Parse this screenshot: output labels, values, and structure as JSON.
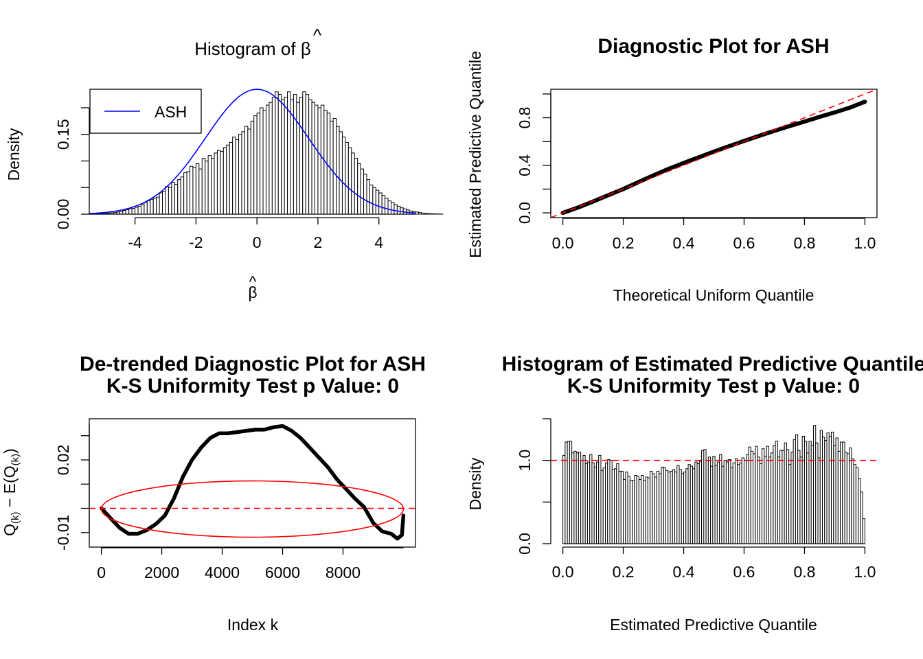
{
  "chart_data": [
    {
      "type": "bar",
      "title": "Histogram of β̂",
      "title_text": "Histogram of ",
      "title_symbol": "β",
      "xlabel_symbol": "β",
      "ylabel": "Density",
      "xlim": [
        -5.5,
        5.2
      ],
      "ylim": [
        0,
        0.24
      ],
      "x_ticks": [
        "-4",
        "-2",
        "0",
        "2",
        "4"
      ],
      "y_ticks": [
        "0.00",
        "0.15"
      ],
      "bins_from": -5.4,
      "bin_width": 0.1,
      "values": [
        0.0003,
        0.0004,
        0.0008,
        0.001,
        0.0012,
        0.002,
        0.0025,
        0.003,
        0.004,
        0.005,
        0.007,
        0.0085,
        0.01,
        0.011,
        0.013,
        0.015,
        0.018,
        0.022,
        0.025,
        0.028,
        0.03,
        0.032,
        0.04,
        0.043,
        0.052,
        0.05,
        0.06,
        0.056,
        0.065,
        0.07,
        0.078,
        0.08,
        0.09,
        0.088,
        0.095,
        0.085,
        0.105,
        0.1,
        0.11,
        0.105,
        0.115,
        0.12,
        0.118,
        0.125,
        0.13,
        0.135,
        0.145,
        0.14,
        0.15,
        0.155,
        0.165,
        0.16,
        0.175,
        0.185,
        0.19,
        0.2,
        0.195,
        0.205,
        0.21,
        0.22,
        0.23,
        0.225,
        0.215,
        0.22,
        0.23,
        0.215,
        0.225,
        0.21,
        0.22,
        0.23,
        0.225,
        0.215,
        0.21,
        0.205,
        0.2,
        0.205,
        0.195,
        0.19,
        0.175,
        0.18,
        0.165,
        0.155,
        0.145,
        0.135,
        0.125,
        0.115,
        0.105,
        0.095,
        0.085,
        0.075,
        0.065,
        0.055,
        0.05,
        0.045,
        0.04,
        0.035,
        0.03,
        0.025,
        0.022,
        0.018,
        0.015,
        0.012,
        0.01,
        0.008,
        0.006,
        0.005,
        0.004,
        0.003,
        0.002,
        0.0015,
        0.001,
        0.0008,
        0.0005,
        0.0004,
        0.0003
      ],
      "series": [
        {
          "name": "ASH",
          "curve": "normal",
          "mean": 0.0,
          "sd": 1.7,
          "color": "#0000ff"
        }
      ],
      "legend": "top-left"
    },
    {
      "type": "line",
      "title": "Diagnostic Plot for ASH",
      "xlabel": "Theoretical Uniform Quantile",
      "ylabel": "Estimated Predictive Quantile",
      "xlim": [
        -0.04,
        1.04
      ],
      "ylim": [
        -0.04,
        1.04
      ],
      "x_ticks": [
        "0.0",
        "0.2",
        "0.4",
        "0.6",
        "0.8",
        "1.0"
      ],
      "y_ticks": [
        "0.0",
        "0.4",
        "0.8"
      ],
      "x": [
        0.0,
        0.05,
        0.1,
        0.15,
        0.2,
        0.25,
        0.3,
        0.35,
        0.4,
        0.45,
        0.5,
        0.55,
        0.6,
        0.65,
        0.7,
        0.75,
        0.8,
        0.85,
        0.9,
        0.95,
        1.0
      ],
      "y": [
        0.0,
        0.045,
        0.095,
        0.148,
        0.2,
        0.258,
        0.315,
        0.37,
        0.42,
        0.467,
        0.515,
        0.56,
        0.605,
        0.648,
        0.69,
        0.73,
        0.768,
        0.808,
        0.845,
        0.885,
        0.935
      ],
      "reference_line": "y = x",
      "reference_color": "#ff0000"
    },
    {
      "type": "line",
      "title_lines": [
        "De-trended Diagnostic Plot for ASH",
        "K-S Uniformity Test p Value: 0"
      ],
      "xlabel": "Index k",
      "ylabel": "Q(k) − E(Q(k))",
      "ylabel_parts": {
        "q": "Q",
        "sub": "(k)",
        "mid": " − E(Q",
        "close": ")"
      },
      "xlim": [
        -400,
        10400
      ],
      "ylim": [
        -0.016,
        0.037
      ],
      "x_ticks": [
        "0",
        "2000",
        "4000",
        "6000",
        "8000"
      ],
      "y_ticks": [
        "-0.01",
        "0.02"
      ],
      "x": [
        0,
        300,
        600,
        900,
        1200,
        1500,
        1800,
        2100,
        2400,
        2700,
        3000,
        3300,
        3600,
        3900,
        4200,
        4500,
        4800,
        5100,
        5400,
        5700,
        6000,
        6300,
        6600,
        6900,
        7200,
        7500,
        7800,
        8100,
        8400,
        8700,
        9000,
        9300,
        9600,
        9800,
        9950,
        10000
      ],
      "y": [
        0.0,
        -0.004,
        -0.008,
        -0.0105,
        -0.0105,
        -0.009,
        -0.0065,
        -0.003,
        0.004,
        0.013,
        0.02,
        0.025,
        0.029,
        0.031,
        0.031,
        0.0315,
        0.032,
        0.0325,
        0.0325,
        0.0335,
        0.034,
        0.032,
        0.029,
        0.025,
        0.021,
        0.017,
        0.012,
        0.008,
        0.004,
        0.0005,
        -0.006,
        -0.0095,
        -0.0105,
        -0.0125,
        -0.011,
        -0.003
      ],
      "reference_line": "y = 0",
      "reference_color": "#ff0000"
    },
    {
      "type": "bar",
      "title_lines": [
        "Histogram of Estimated Predictive Quantile",
        "K-S Uniformity Test p Value: 0"
      ],
      "xlabel": "Estimated Predictive Quantile",
      "ylabel": "Density",
      "xlim": [
        -0.04,
        1.04
      ],
      "ylim": [
        0,
        1.5
      ],
      "x_ticks": [
        "0.0",
        "0.2",
        "0.4",
        "0.6",
        "0.8",
        "1.0"
      ],
      "y_ticks": [
        "0.0",
        "1.0"
      ],
      "bins_from": 0,
      "bin_width": 0.01,
      "values": [
        1.06,
        1.22,
        1.23,
        1.23,
        1.09,
        1.11,
        1.09,
        1.1,
        1.0,
        1.06,
        0.96,
        0.98,
        1.07,
        0.97,
        0.92,
        0.98,
        1.06,
        0.88,
        0.91,
        0.97,
        1.01,
        1.0,
        0.89,
        0.9,
        0.96,
        0.87,
        0.87,
        0.77,
        0.86,
        0.81,
        0.76,
        0.76,
        0.82,
        0.81,
        0.77,
        0.82,
        0.76,
        0.8,
        0.79,
        0.87,
        0.84,
        0.8,
        0.87,
        0.84,
        0.92,
        0.91,
        0.88,
        0.86,
        0.87,
        0.89,
        0.86,
        0.94,
        0.89,
        0.84,
        0.86,
        0.9,
        0.95,
        0.93,
        0.9,
        0.98,
        0.96,
        0.99,
        1.12,
        1.13,
        1.0,
        1.04,
        0.93,
        1.05,
        0.94,
        0.98,
        1.07,
        0.93,
        1.0,
        0.98,
        1.01,
        0.91,
        0.97,
        1.02,
        0.95,
        0.97,
        1.03,
        1.0,
        1.07,
        1.16,
        1.11,
        1.08,
        1.17,
        1.04,
        0.96,
        1.14,
        1.05,
        1.17,
        1.04,
        1.09,
        1.18,
        1.23,
        1.04,
        1.12,
        1.12,
        1.21,
        1.13,
        0.95,
        1.1,
        1.25,
        1.31,
        1.12,
        1.04,
        1.29,
        1.23,
        1.09,
        1.23,
        1.18,
        1.42,
        1.21,
        1.03,
        1.36,
        1.28,
        1.24,
        1.33,
        1.29,
        1.34,
        1.18,
        1.27,
        1.11,
        1.22,
        1.22,
        1.1,
        1.08,
        1.15,
        1.02,
        0.95,
        0.91,
        0.78,
        0.62,
        0.3
      ],
      "reference_line": "y = 1",
      "reference_color": "#ff0000"
    }
  ]
}
